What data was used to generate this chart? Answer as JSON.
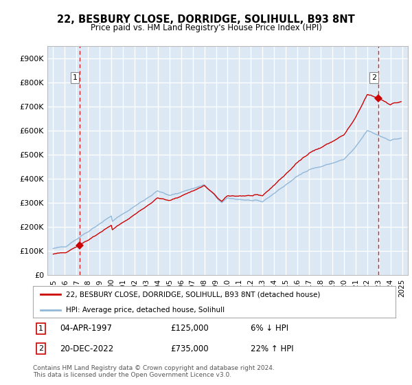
{
  "title": "22, BESBURY CLOSE, DORRIDGE, SOLIHULL, B93 8NT",
  "subtitle": "Price paid vs. HM Land Registry's House Price Index (HPI)",
  "ylabel_ticks": [
    "£0",
    "£100K",
    "£200K",
    "£300K",
    "£400K",
    "£500K",
    "£600K",
    "£700K",
    "£800K",
    "£900K"
  ],
  "ytick_values": [
    0,
    100000,
    200000,
    300000,
    400000,
    500000,
    600000,
    700000,
    800000,
    900000
  ],
  "ylim": [
    0,
    950000
  ],
  "transaction1": {
    "date_num": 1997.27,
    "price": 125000,
    "label": "1"
  },
  "transaction2": {
    "date_num": 2022.97,
    "price": 735000,
    "label": "2"
  },
  "legend_line1": "22, BESBURY CLOSE, DORRIDGE, SOLIHULL, B93 8NT (detached house)",
  "legend_line2": "HPI: Average price, detached house, Solihull",
  "table_row1": [
    "1",
    "04-APR-1997",
    "£125,000",
    "6% ↓ HPI"
  ],
  "table_row2": [
    "2",
    "20-DEC-2022",
    "£735,000",
    "22% ↑ HPI"
  ],
  "footer": "Contains HM Land Registry data © Crown copyright and database right 2024.\nThis data is licensed under the Open Government Licence v3.0.",
  "line_color_red": "#cc0000",
  "line_color_blue": "#92b8d8",
  "bg_color": "#dce8f4",
  "grid_color": "#ffffff",
  "dashed_color": "#cc0000"
}
